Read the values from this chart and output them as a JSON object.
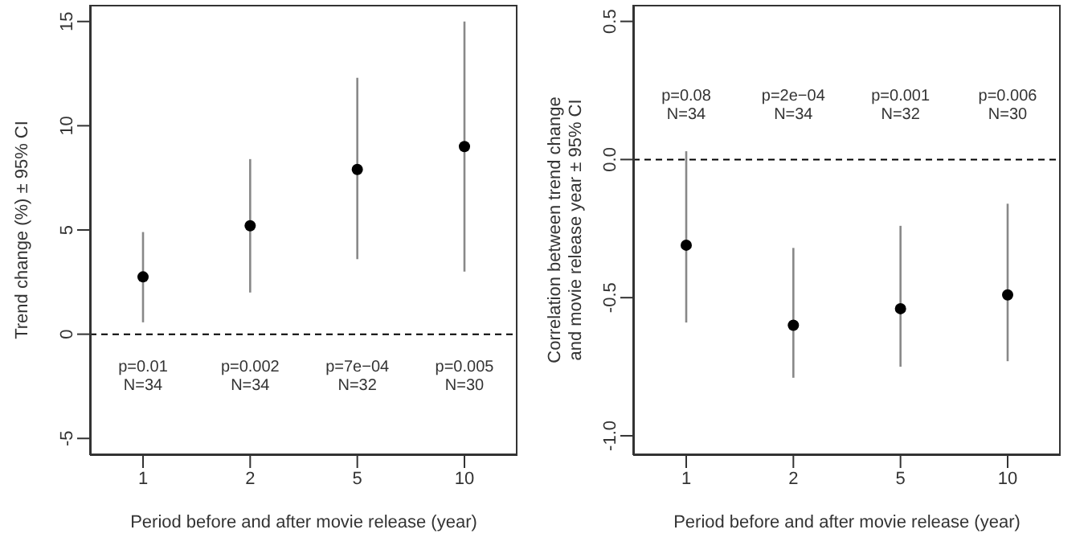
{
  "chart_data": [
    {
      "type": "scatter",
      "categories": [
        "1",
        "2",
        "5",
        "10"
      ],
      "values": [
        2.75,
        5.2,
        7.9,
        9.0
      ],
      "errors": [
        [
          0.57,
          4.9
        ],
        [
          2.0,
          8.4
        ],
        [
          3.6,
          12.3
        ],
        [
          3.0,
          15.0
        ]
      ],
      "color": "#000000",
      "marker": "circle",
      "ylim": [
        -5.8,
        15.8
      ],
      "yticks": [
        -5,
        0,
        5,
        10,
        15
      ],
      "xlabel": "Period before and after movie release (year)",
      "ylabel": "Trend change (%)  ± 95% CI",
      "grid": false,
      "legend": false,
      "ref_lines": [
        {
          "axis": "y",
          "value": 0,
          "line_style": "dashed",
          "color": "#000000"
        }
      ],
      "annotations": [
        "p=0.01\nN=34",
        "p=0.002\nN=34",
        "p=7e−04\nN=32",
        "p=0.005\nN=30"
      ]
    },
    {
      "type": "scatter",
      "categories": [
        "1",
        "2",
        "5",
        "10"
      ],
      "values": [
        -0.31,
        -0.6,
        -0.54,
        -0.49
      ],
      "errors": [
        [
          -0.59,
          0.03
        ],
        [
          -0.79,
          -0.32
        ],
        [
          -0.75,
          -0.24
        ],
        [
          -0.73,
          -0.16
        ]
      ],
      "color": "#000000",
      "marker": "circle",
      "ylim": [
        -1.07,
        0.56
      ],
      "yticks": [
        {
          "value": -1,
          "label": "-1.0"
        },
        -0.5,
        {
          "value": 0,
          "label": "0.0"
        },
        0.5
      ],
      "xlabel": "Period before and after movie release (year)",
      "ylabel": "Correlation between trend change\nand movie release year ± 95% CI",
      "grid": false,
      "legend": false,
      "ref_lines": [
        {
          "axis": "y",
          "value": 0,
          "line_style": "dashed",
          "color": "#000000"
        }
      ],
      "annotations": [
        "p=0.08\nN=34",
        "p=2e−04\nN=34",
        "p=0.001\nN=32",
        "p=0.006\nN=30"
      ]
    }
  ]
}
